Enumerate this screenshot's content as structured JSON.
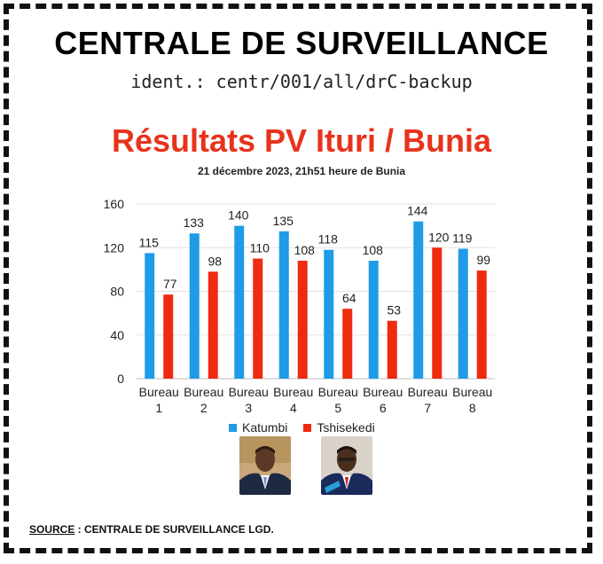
{
  "header": {
    "title": "CENTRALE DE SURVEILLANCE",
    "ident": "ident.: centr/001/all/drC-backup"
  },
  "chart_data": {
    "type": "bar",
    "title": "Résultats PV Ituri / Bunia",
    "subtitle": "21 décembre 2023, 21h51 heure de Bunia",
    "categories": [
      [
        "Bureau",
        "1"
      ],
      [
        "Bureau",
        "2"
      ],
      [
        "Bureau",
        "3"
      ],
      [
        "Bureau",
        "4"
      ],
      [
        "Bureau",
        "5"
      ],
      [
        "Bureau",
        "6"
      ],
      [
        "Bureau",
        "7"
      ],
      [
        "Bureau",
        "8"
      ]
    ],
    "series": [
      {
        "name": "Katumbi",
        "color": "#1f9be8",
        "values": [
          115,
          133,
          140,
          135,
          118,
          108,
          144,
          119
        ]
      },
      {
        "name": "Tshisekedi",
        "color": "#ee2a10",
        "values": [
          77,
          98,
          110,
          108,
          64,
          53,
          120,
          99
        ]
      }
    ],
    "ylim": [
      0,
      160
    ],
    "yticks": [
      0,
      40,
      80,
      120,
      160
    ],
    "grid": true,
    "legend": "bottom",
    "data_labels": true
  },
  "legend": {
    "items": [
      {
        "label": "Katumbi",
        "color": "#1f9be8"
      },
      {
        "label": "Tshisekedi",
        "color": "#ee2a10"
      }
    ]
  },
  "portraits": [
    "katumbi-portrait",
    "tshisekedi-portrait"
  ],
  "source": {
    "key": "SOURCE",
    "text": " : CENTRALE DE SURVEILLANCE LGD."
  }
}
